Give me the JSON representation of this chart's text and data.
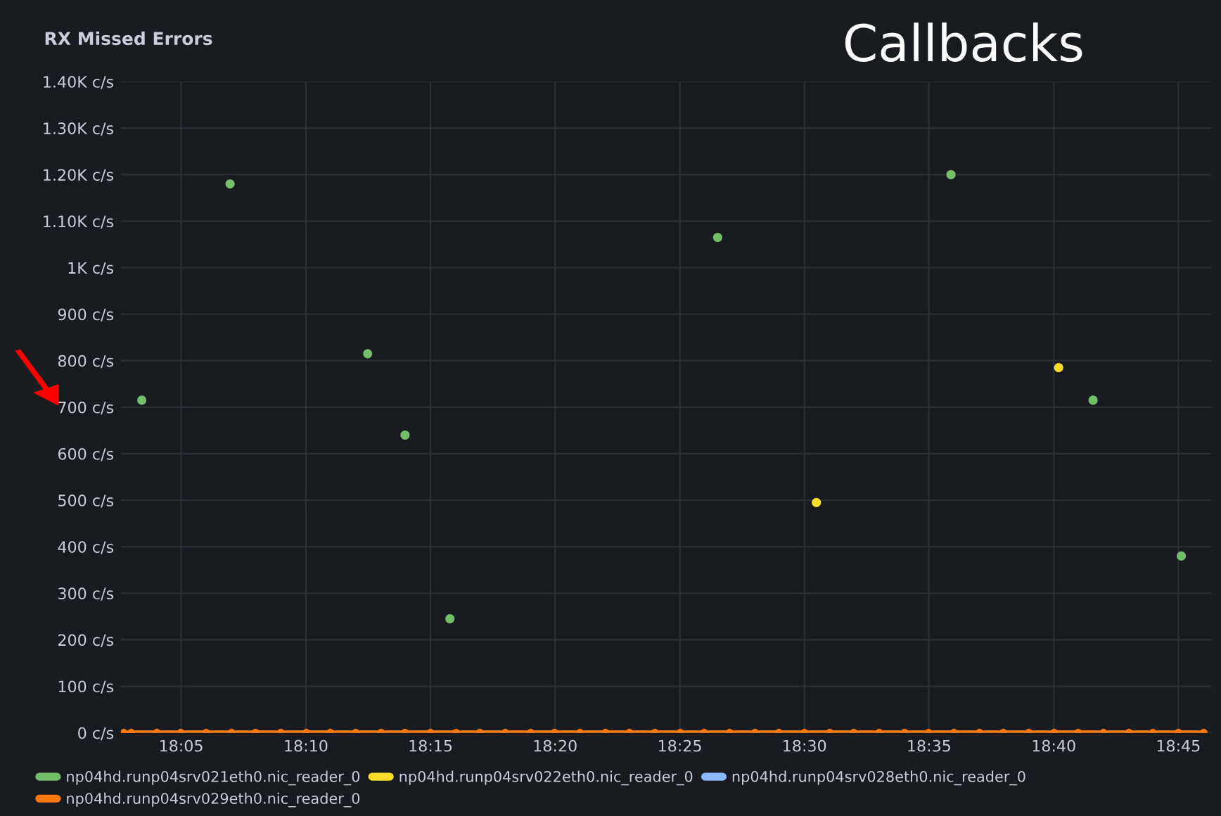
{
  "chart_data": {
    "type": "scatter",
    "title": "RX Missed Errors",
    "annotations": [
      "Callbacks"
    ],
    "marker": "circle",
    "grid": true,
    "legend": "bottom",
    "xlim": [
      18.043,
      18.772
    ],
    "xticks": [
      {
        "value": 18.0833,
        "label": "18:05"
      },
      {
        "value": 18.1667,
        "label": "18:10"
      },
      {
        "value": 18.25,
        "label": "18:15"
      },
      {
        "value": 18.3333,
        "label": "18:20"
      },
      {
        "value": 18.4167,
        "label": "18:25"
      },
      {
        "value": 18.5,
        "label": "18:30"
      },
      {
        "value": 18.5833,
        "label": "18:35"
      },
      {
        "value": 18.6667,
        "label": "18:40"
      },
      {
        "value": 18.75,
        "label": "18:45"
      }
    ],
    "ylim": [
      0,
      1400
    ],
    "yticks": [
      {
        "value": 0,
        "label": "0 c/s"
      },
      {
        "value": 100,
        "label": "100 c/s"
      },
      {
        "value": 200,
        "label": "200 c/s"
      },
      {
        "value": 300,
        "label": "300 c/s"
      },
      {
        "value": 400,
        "label": "400 c/s"
      },
      {
        "value": 500,
        "label": "500 c/s"
      },
      {
        "value": 600,
        "label": "600 c/s"
      },
      {
        "value": 700,
        "label": "700 c/s"
      },
      {
        "value": 800,
        "label": "800 c/s"
      },
      {
        "value": 900,
        "label": "900 c/s"
      },
      {
        "value": 1000,
        "label": "1K c/s"
      },
      {
        "value": 1100,
        "label": "1.10K c/s"
      },
      {
        "value": 1200,
        "label": "1.20K c/s"
      },
      {
        "value": 1300,
        "label": "1.30K c/s"
      },
      {
        "value": 1400,
        "label": "1.40K c/s"
      }
    ],
    "series": [
      {
        "name": "np04hd.runp04srv021eth0.nic_reader_0",
        "color": "#73bf69",
        "x": [
          18.057,
          18.116,
          18.208,
          18.233,
          18.263,
          18.442,
          18.598,
          18.693,
          18.752
        ],
        "values": [
          715,
          1180,
          815,
          640,
          245,
          1065,
          1200,
          715,
          380
        ]
      },
      {
        "name": "np04hd.runp04srv022eth0.nic_reader_0",
        "color": "#fade2a",
        "x": [
          18.508,
          18.67
        ],
        "values": [
          495,
          785
        ]
      },
      {
        "name": "np04hd.runp04srv028eth0.nic_reader_0",
        "color": "#8ab8ff"
      },
      {
        "name": "np04hd.runp04srv029eth0.nic_reader_0",
        "color": "#ff780a",
        "type": "line",
        "x": [
          18.045,
          18.05,
          18.067,
          18.083,
          18.1,
          18.117,
          18.133,
          18.15,
          18.167,
          18.183,
          18.2,
          18.217,
          18.233,
          18.25,
          18.267,
          18.283,
          18.3,
          18.317,
          18.333,
          18.35,
          18.367,
          18.383,
          18.4,
          18.417,
          18.433,
          18.45,
          18.467,
          18.483,
          18.5,
          18.517,
          18.533,
          18.55,
          18.567,
          18.583,
          18.6,
          18.617,
          18.633,
          18.65,
          18.667,
          18.683,
          18.7,
          18.717,
          18.733,
          18.75,
          18.767
        ],
        "values": [
          0,
          0,
          0,
          0,
          0,
          0,
          0,
          0,
          0,
          0,
          0,
          0,
          0,
          0,
          0,
          0,
          0,
          0,
          0,
          0,
          0,
          0,
          0,
          0,
          0,
          0,
          0,
          0,
          0,
          0,
          0,
          0,
          0,
          0,
          0,
          0,
          0,
          0,
          0,
          0,
          0,
          0,
          0,
          0,
          0
        ]
      }
    ]
  }
}
